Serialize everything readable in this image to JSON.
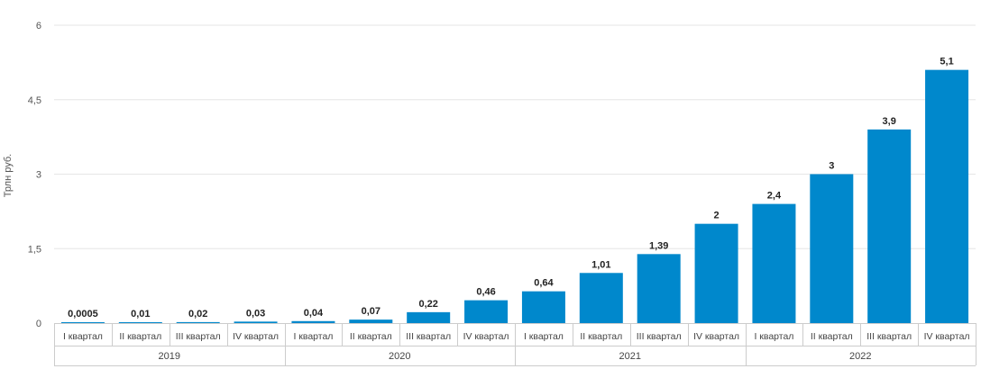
{
  "chart_data": {
    "type": "bar",
    "title": "",
    "xlabel": "",
    "ylabel": "Трлн руб.",
    "ylim": [
      0,
      6
    ],
    "yticks": [
      {
        "value": 0,
        "label": "0"
      },
      {
        "value": 1.5,
        "label": "1,5"
      },
      {
        "value": 3,
        "label": "3"
      },
      {
        "value": 4.5,
        "label": "4,5"
      },
      {
        "value": 6,
        "label": "6"
      }
    ],
    "grid": true,
    "legend": "none",
    "bar_color": "#0088cc",
    "categories": [
      "I квартал",
      "II квартал",
      "III квартал",
      "IV квартал",
      "I квартал",
      "II квартал",
      "III квартал",
      "IV квартал",
      "I квартал",
      "II квартал",
      "III квартал",
      "IV квартал",
      "I квартал",
      "II квартал",
      "III квартал",
      "IV квартал"
    ],
    "groups": [
      {
        "label": "2019",
        "count": 4
      },
      {
        "label": "2020",
        "count": 4
      },
      {
        "label": "2021",
        "count": 4
      },
      {
        "label": "2022",
        "count": 4
      }
    ],
    "values": [
      0.0005,
      0.01,
      0.02,
      0.03,
      0.04,
      0.07,
      0.22,
      0.46,
      0.64,
      1.01,
      1.39,
      2,
      2.4,
      3,
      3.9,
      5.1
    ],
    "value_labels": [
      "0,0005",
      "0,01",
      "0,02",
      "0,03",
      "0,04",
      "0,07",
      "0,22",
      "0,46",
      "0,64",
      "1,01",
      "1,39",
      "2",
      "2,4",
      "3",
      "3,9",
      "5,1"
    ]
  }
}
